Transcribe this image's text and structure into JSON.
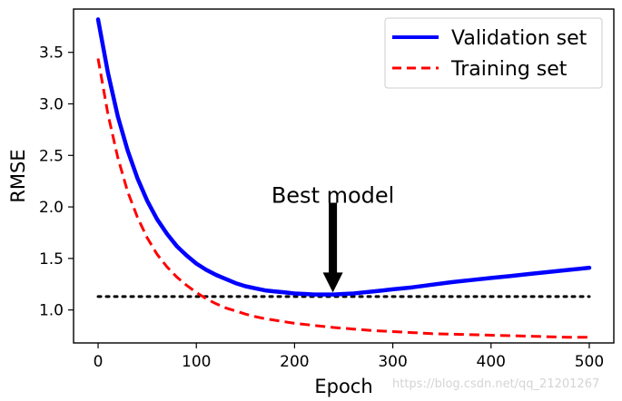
{
  "chart_data": {
    "type": "line",
    "xlabel": "Epoch",
    "ylabel": "RMSE",
    "xlim": [
      -25,
      525
    ],
    "ylim": [
      0.68,
      3.92
    ],
    "xticks": [
      0,
      100,
      200,
      300,
      400,
      500
    ],
    "yticks": [
      1.0,
      1.5,
      2.0,
      2.5,
      3.0,
      3.5
    ],
    "series": [
      {
        "name": "Validation set",
        "style": "solid",
        "color": "#0000ff",
        "x": [
          0,
          10,
          20,
          30,
          40,
          50,
          60,
          70,
          80,
          90,
          100,
          110,
          120,
          130,
          140,
          150,
          160,
          170,
          180,
          190,
          200,
          210,
          220,
          230,
          240,
          250,
          260,
          270,
          280,
          290,
          300,
          320,
          340,
          360,
          380,
          400,
          420,
          440,
          460,
          480,
          500
        ],
        "values": [
          3.82,
          3.3,
          2.88,
          2.55,
          2.28,
          2.06,
          1.88,
          1.74,
          1.62,
          1.53,
          1.45,
          1.39,
          1.34,
          1.3,
          1.26,
          1.23,
          1.21,
          1.19,
          1.18,
          1.17,
          1.16,
          1.155,
          1.15,
          1.15,
          1.15,
          1.155,
          1.16,
          1.17,
          1.18,
          1.19,
          1.2,
          1.22,
          1.245,
          1.27,
          1.29,
          1.31,
          1.33,
          1.35,
          1.37,
          1.39,
          1.41
        ]
      },
      {
        "name": "Training set",
        "style": "dashed",
        "color": "#ff0000",
        "x": [
          0,
          10,
          20,
          30,
          40,
          50,
          60,
          70,
          80,
          90,
          100,
          110,
          120,
          130,
          140,
          150,
          160,
          170,
          180,
          190,
          200,
          220,
          240,
          260,
          280,
          300,
          320,
          340,
          360,
          380,
          400,
          420,
          440,
          460,
          480,
          500
        ],
        "values": [
          3.44,
          2.9,
          2.48,
          2.15,
          1.9,
          1.7,
          1.54,
          1.42,
          1.32,
          1.24,
          1.17,
          1.11,
          1.06,
          1.02,
          0.99,
          0.96,
          0.935,
          0.915,
          0.9,
          0.885,
          0.87,
          0.85,
          0.83,
          0.815,
          0.8,
          0.79,
          0.78,
          0.77,
          0.765,
          0.76,
          0.755,
          0.75,
          0.745,
          0.74,
          0.735,
          0.735
        ]
      }
    ],
    "reference_line": {
      "y": 1.13,
      "x_start": 0,
      "x_end": 500,
      "style": "dotted",
      "color": "#000000"
    },
    "annotation": {
      "text": "Best model",
      "arrow_x": 239,
      "arrow_tip_y": 1.17,
      "arrow_tail_y": 2.04,
      "text_y": 2.18
    },
    "legend": {
      "position": "top-right",
      "entries": [
        "Validation set",
        "Training set"
      ]
    }
  },
  "watermark": "https://blog.csdn.net/qq_21201267"
}
